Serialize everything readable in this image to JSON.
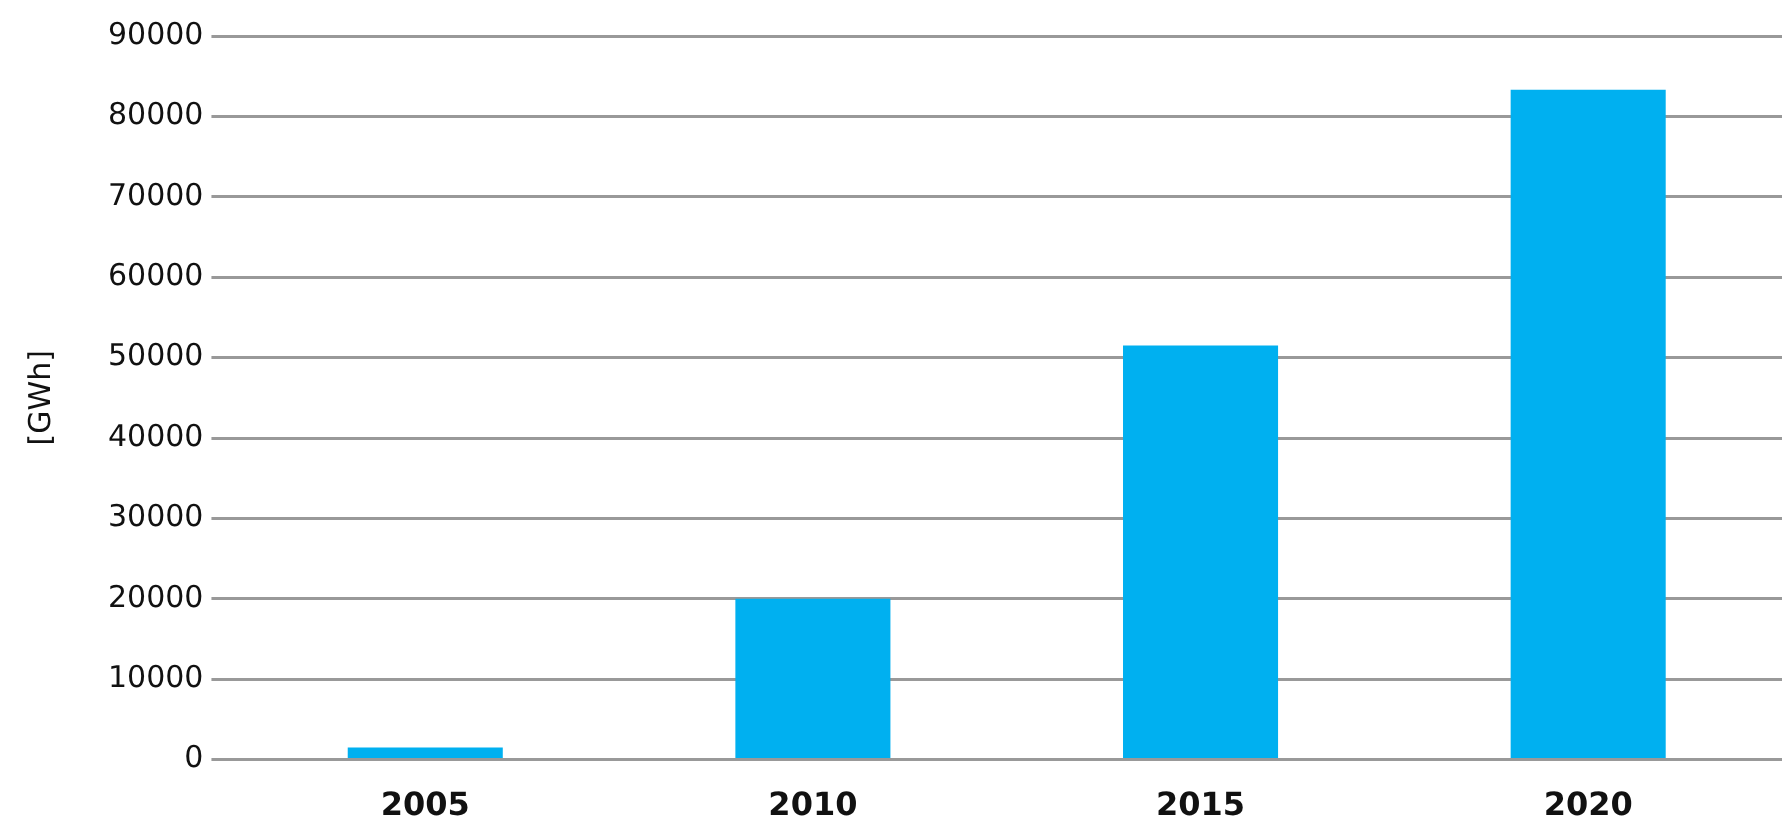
{
  "chart_data": {
    "type": "bar",
    "ylabel": "[GWh]",
    "categories": [
      "2005",
      "2010",
      "2015",
      "2020"
    ],
    "values": [
      1500,
      20000,
      51500,
      83300
    ],
    "color": "#00b0f0",
    "ylim": [
      0,
      90000
    ],
    "yticks": [
      0,
      10000,
      20000,
      30000,
      40000,
      50000,
      60000,
      70000,
      80000,
      90000
    ],
    "grid": "y",
    "legend": false
  }
}
